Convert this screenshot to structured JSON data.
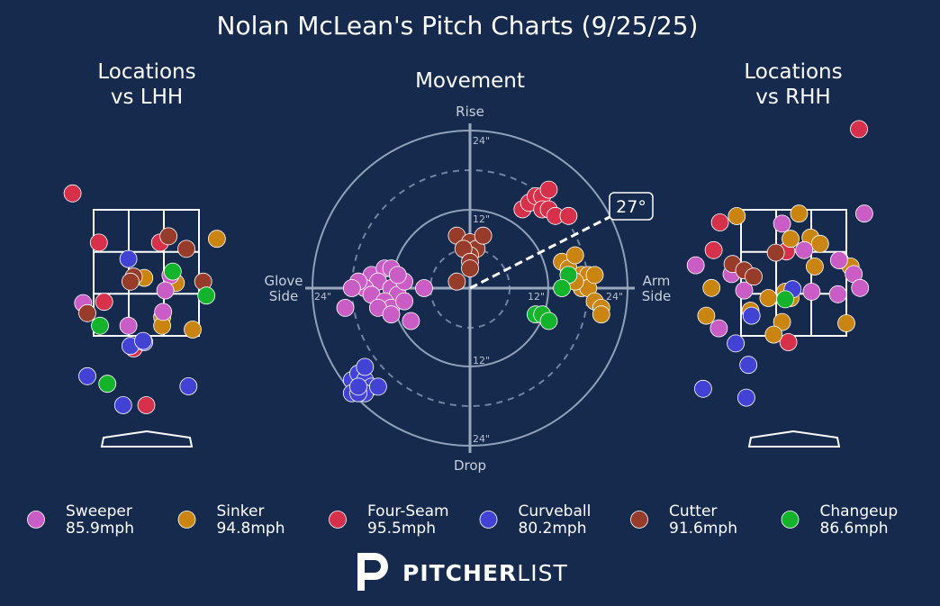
{
  "title": "Nolan McLean's Pitch Charts (9/25/25)",
  "panels": {
    "lhh_title": [
      "Locations",
      "vs LHH"
    ],
    "movement_title": "Movement",
    "rhh_title": [
      "Locations",
      "vs RHH"
    ]
  },
  "movement": {
    "rise_label": "Rise",
    "drop_label": "Drop",
    "glove_label": [
      "Glove",
      "Side"
    ],
    "arm_label": [
      "Arm",
      "Side"
    ],
    "ring_labels": [
      "12\"",
      "24\""
    ],
    "arm_angle_label": "27°",
    "arm_angle_deg": 27
  },
  "legend": [
    {
      "pitch": "Sweeper",
      "velo": "85.9mph",
      "color": "#c95dc5"
    },
    {
      "pitch": "Sinker",
      "velo": "94.8mph",
      "color": "#c9850f"
    },
    {
      "pitch": "Four-Seam",
      "velo": "95.5mph",
      "color": "#d6304b"
    },
    {
      "pitch": "Curveball",
      "velo": "80.2mph",
      "color": "#4243d5"
    },
    {
      "pitch": "Cutter",
      "velo": "91.6mph",
      "color": "#973b2a"
    },
    {
      "pitch": "Changeup",
      "velo": "86.6mph",
      "color": "#14b32c"
    }
  ],
  "logo": {
    "bold": "PITCHER",
    "light": "LIST"
  },
  "colors": {
    "background": "#162a4d",
    "zone": "#ffffff",
    "grid": "#8fa0b8"
  },
  "chart_data": [
    {
      "type": "scatter",
      "title": "Locations vs LHH",
      "units": "zone widths relative to strike-zone box (0-1 = zone)",
      "series": [
        {
          "name": "Four-Seam",
          "points": [
            [
              0.5,
              -0.55
            ],
            [
              -0.2,
              1.13
            ],
            [
              0.05,
              0.74
            ],
            [
              0.63,
              0.74
            ],
            [
              0.1,
              0.27
            ],
            [
              -0.45,
              0.38
            ],
            [
              0.38,
              -0.1
            ],
            [
              1.48,
              0.56
            ]
          ]
        },
        {
          "name": "Curveball",
          "points": [
            [
              0.9,
              -0.4
            ],
            [
              0.33,
              0.61
            ],
            [
              0.35,
              -0.08
            ],
            [
              0.48,
              -0.05
            ],
            [
              -0.45,
              -0.19
            ],
            [
              -0.06,
              -0.32
            ],
            [
              -0.77,
              -0.36
            ],
            [
              0.28,
              -0.55
            ],
            [
              0.47,
              -0.04
            ]
          ]
        },
        {
          "name": "Sinker",
          "points": [
            [
              1.17,
              0.77
            ],
            [
              0.48,
              0.46
            ],
            [
              0.78,
              0.42
            ],
            [
              0.65,
              0.15
            ],
            [
              0.94,
              0.05
            ],
            [
              0.65,
              0.08
            ]
          ]
        },
        {
          "name": "Sweeper",
          "points": [
            [
              0.73,
              0.48
            ],
            [
              0.68,
              0.36
            ],
            [
              -0.1,
              0.26
            ],
            [
              0.66,
              0.19
            ],
            [
              0.33,
              0.08
            ]
          ]
        },
        {
          "name": "Cutter",
          "points": [
            [
              0.71,
              0.79
            ],
            [
              0.88,
              0.69
            ],
            [
              0.38,
              0.47
            ],
            [
              0.35,
              0.43
            ],
            [
              1.04,
              0.43
            ],
            [
              -0.06,
              0.18
            ]
          ]
        },
        {
          "name": "Changeup",
          "points": [
            [
              0.75,
              0.51
            ],
            [
              1.07,
              0.32
            ],
            [
              0.06,
              0.08
            ],
            [
              0.13,
              -0.38
            ]
          ]
        }
      ]
    },
    {
      "type": "scatter",
      "title": "Movement",
      "xlabel": "Arm Side (in)",
      "ylabel": "Rise (in)",
      "xlim": [
        -24,
        24
      ],
      "ylim": [
        -24,
        24
      ],
      "series": [
        {
          "name": "Four-Seam",
          "points": [
            [
              8,
              12
            ],
            [
              9,
              13
            ],
            [
              10,
              14
            ],
            [
              11,
              14
            ],
            [
              12,
              15
            ],
            [
              11,
              12
            ],
            [
              12,
              12
            ],
            [
              13,
              11
            ],
            [
              15,
              11
            ]
          ]
        },
        {
          "name": "Sinker",
          "points": [
            [
              14,
              4
            ],
            [
              15,
              3
            ],
            [
              16,
              5
            ],
            [
              17,
              2
            ],
            [
              18,
              2
            ],
            [
              17,
              0
            ],
            [
              18,
              0
            ],
            [
              19,
              2
            ],
            [
              19,
              -2
            ],
            [
              20,
              -3
            ],
            [
              20,
              -4
            ],
            [
              16,
              1
            ]
          ]
        },
        {
          "name": "Changeup",
          "points": [
            [
              15,
              2
            ],
            [
              14,
              0
            ],
            [
              10,
              -4
            ],
            [
              11,
              -4
            ],
            [
              12,
              -5
            ]
          ]
        },
        {
          "name": "Cutter",
          "points": [
            [
              -2,
              8
            ],
            [
              0,
              7
            ],
            [
              1,
              6
            ],
            [
              0,
              5
            ],
            [
              -1,
              6
            ],
            [
              0,
              4
            ],
            [
              0,
              3
            ],
            [
              2,
              8
            ],
            [
              -2,
              1
            ]
          ]
        },
        {
          "name": "Sweeper",
          "points": [
            [
              -15,
              2
            ],
            [
              -13,
              3
            ],
            [
              -12,
              3
            ],
            [
              -14,
              1
            ],
            [
              -16,
              0
            ],
            [
              -17,
              1
            ],
            [
              -18,
              0
            ],
            [
              -15,
              -1
            ],
            [
              -12,
              0
            ],
            [
              -11,
              -1
            ],
            [
              -13,
              -2
            ],
            [
              -12,
              -3
            ],
            [
              -14,
              -3
            ],
            [
              -10,
              1
            ],
            [
              -11,
              2
            ],
            [
              -10,
              -2
            ],
            [
              -12,
              -4
            ],
            [
              -9,
              -5
            ],
            [
              -19,
              -3
            ],
            [
              -7,
              0
            ]
          ]
        },
        {
          "name": "Curveball",
          "points": [
            [
              -18,
              -14
            ],
            [
              -17,
              -13
            ],
            [
              -16,
              -14
            ],
            [
              -15,
              -15
            ],
            [
              -16,
              -16
            ],
            [
              -18,
              -16
            ],
            [
              -17,
              -16
            ],
            [
              -14,
              -15
            ],
            [
              -16,
              -12
            ],
            [
              -17,
              -15
            ]
          ]
        }
      ]
    },
    {
      "type": "scatter",
      "title": "Locations vs RHH",
      "units": "zone widths relative to strike-zone box (0-1 = zone)",
      "series": [
        {
          "name": "Four-Seam",
          "points": [
            [
              1.12,
              1.64
            ],
            [
              -0.2,
              0.9
            ],
            [
              -0.26,
              0.68
            ],
            [
              0.43,
              0.67
            ],
            [
              0.45,
              -0.05
            ]
          ]
        },
        {
          "name": "Sinker",
          "points": [
            [
              0.55,
              0.97
            ],
            [
              0.47,
              0.77
            ],
            [
              0.66,
              0.78
            ],
            [
              0.75,
              0.73
            ],
            [
              0.7,
              0.55
            ],
            [
              0.94,
              0.6
            ],
            [
              1.04,
              0.55
            ],
            [
              1.0,
              0.1
            ],
            [
              0.47,
              0.3
            ],
            [
              0.42,
              0.35
            ],
            [
              0.26,
              0.3
            ],
            [
              0.39,
              0.11
            ],
            [
              0.31,
              0.01
            ],
            [
              -0.28,
              0.38
            ],
            [
              -0.04,
              0.95
            ],
            [
              -0.33,
              0.16
            ],
            [
              0.09,
              0.2
            ]
          ]
        },
        {
          "name": "Sweeper",
          "points": [
            [
              0.39,
              0.89
            ],
            [
              1.17,
              0.97
            ],
            [
              0.93,
              0.6
            ],
            [
              1.07,
              0.49
            ],
            [
              0.6,
              0.68
            ],
            [
              1.13,
              0.38
            ],
            [
              0.92,
              0.33
            ],
            [
              0.67,
              0.35
            ],
            [
              0.03,
              0.36
            ],
            [
              -0.09,
              0.49
            ],
            [
              -0.21,
              0.06
            ],
            [
              -0.43,
              0.56
            ]
          ]
        },
        {
          "name": "Curveball",
          "points": [
            [
              0.49,
              0.37
            ],
            [
              0.1,
              0.16
            ],
            [
              -0.05,
              -0.06
            ],
            [
              -0.36,
              -0.42
            ],
            [
              0.07,
              -0.23
            ],
            [
              0.05,
              -0.49
            ]
          ]
        },
        {
          "name": "Cutter",
          "points": [
            [
              0.33,
              0.66
            ],
            [
              -0.08,
              0.57
            ],
            [
              0.03,
              0.52
            ],
            [
              0.12,
              0.47
            ]
          ]
        },
        {
          "name": "Changeup",
          "points": [
            [
              0.42,
              0.29
            ]
          ]
        }
      ]
    }
  ]
}
